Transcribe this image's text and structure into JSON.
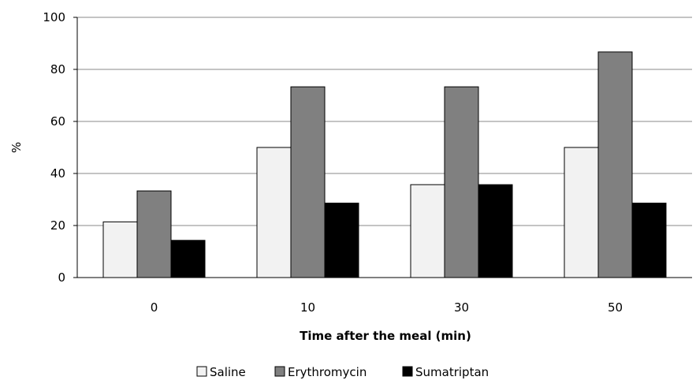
{
  "chart_data": {
    "type": "bar",
    "title": "",
    "xlabel": "Time after the meal (min)",
    "ylabel": "%",
    "categories": [
      "0",
      "10",
      "30",
      "50"
    ],
    "ylim": [
      0,
      100
    ],
    "yticks": [
      0,
      20,
      40,
      60,
      80,
      100
    ],
    "grid": true,
    "legend_position": "bottom",
    "series": [
      {
        "name": "Saline",
        "values": [
          21.4,
          50,
          35.7,
          50
        ],
        "color": "#f2f2f2"
      },
      {
        "name": "Erythromycin",
        "values": [
          33.3,
          73.3,
          73.3,
          86.7
        ],
        "color": "#808080"
      },
      {
        "name": "Sumatriptan",
        "values": [
          14.3,
          28.6,
          35.7,
          28.6
        ],
        "color": "#000000"
      }
    ]
  }
}
